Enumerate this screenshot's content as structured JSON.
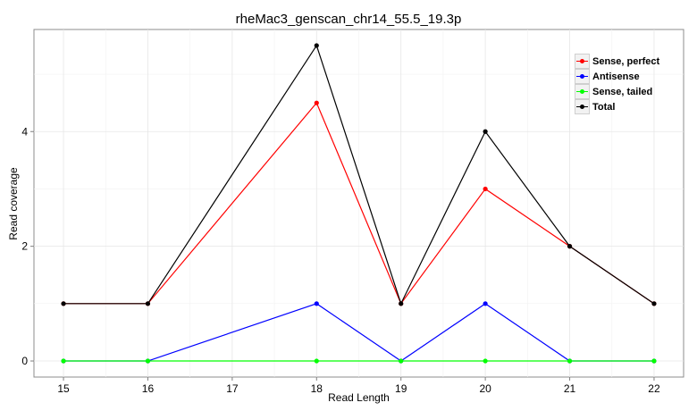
{
  "chart_data": {
    "type": "line",
    "title": "rheMac3_genscan_chr14_55.5_19.3p",
    "xlabel": "Read Length",
    "ylabel": "Read coverage",
    "x": [
      15,
      16,
      17,
      18,
      19,
      20,
      21,
      22
    ],
    "x_ticks": [
      "15",
      "16",
      "17",
      "18",
      "19",
      "20",
      "21",
      "22"
    ],
    "y_ticks": [
      "0",
      "2",
      "4"
    ],
    "xlim": [
      14.65,
      22.35
    ],
    "ylim": [
      -0.28,
      5.78
    ],
    "grid": true,
    "legend_position": "top-right",
    "series": [
      {
        "name": "Sense, perfect",
        "color": "#ff0000",
        "values": [
          1,
          1,
          null,
          4.5,
          1,
          3,
          2,
          1
        ]
      },
      {
        "name": "Antisense",
        "color": "#0000ff",
        "values": [
          0,
          0,
          null,
          1,
          0,
          1,
          0,
          0
        ]
      },
      {
        "name": "Sense, tailed",
        "color": "#00ff00",
        "values": [
          0,
          0,
          null,
          0,
          0,
          0,
          0,
          0
        ]
      },
      {
        "name": "Total",
        "color": "#000000",
        "values": [
          1,
          1,
          null,
          5.5,
          1,
          4,
          2,
          1
        ]
      }
    ]
  }
}
